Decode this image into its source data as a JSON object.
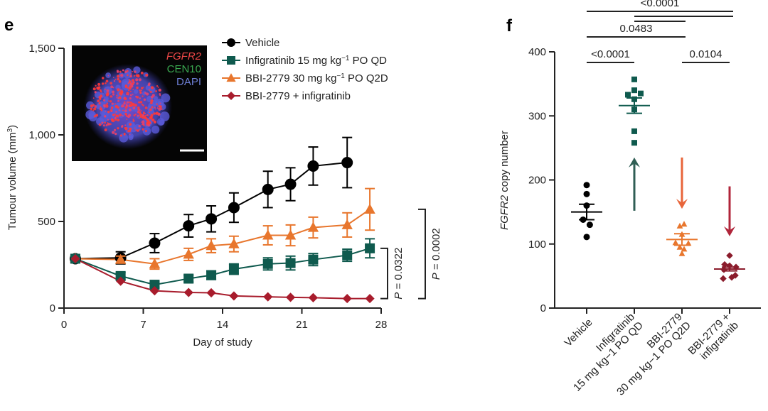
{
  "chart_data": [
    {
      "panel": "e",
      "type": "line",
      "xlabel": "Day of study",
      "ylabel": "Tumour volume (mm³)",
      "ylabel_main": "Tumour volume (mm",
      "ylabel_sup": "3",
      "ylabel_close": ")",
      "xlim": [
        0,
        28
      ],
      "ylim": [
        0,
        1500
      ],
      "xticks": [
        0,
        7,
        14,
        21,
        28
      ],
      "xtick_labels": [
        "0",
        "7",
        "14",
        "21",
        "28"
      ],
      "yticks": [
        0,
        500,
        1000,
        1500
      ],
      "ytick_labels": [
        "0",
        "500",
        "1,000",
        "1,500"
      ],
      "grid": false,
      "legend_position": "top-center",
      "series": [
        {
          "name": "Vehicle",
          "legend_label": "Vehicle",
          "color": "#000000",
          "marker": "circle",
          "x": [
            1,
            5,
            8,
            11,
            13,
            15,
            18,
            20,
            22,
            25
          ],
          "y": [
            285,
            290,
            375,
            475,
            515,
            580,
            685,
            715,
            820,
            840
          ],
          "err": [
            20,
            35,
            55,
            65,
            75,
            85,
            105,
            95,
            110,
            145
          ]
        },
        {
          "name": "Infigratinib 15 mg kg-1 PO QD",
          "legend_label": "Infigratinib 15 mg kg",
          "legend_sup": "−1",
          "legend_suffix": " PO QD",
          "color": "#0f5a4e",
          "marker": "square",
          "x": [
            1,
            5,
            8,
            11,
            13,
            15,
            18,
            20,
            22,
            25,
            27
          ],
          "y": [
            285,
            185,
            135,
            170,
            190,
            225,
            255,
            260,
            280,
            305,
            345
          ],
          "err": [
            15,
            20,
            15,
            20,
            25,
            30,
            35,
            40,
            35,
            35,
            55
          ]
        },
        {
          "name": "BBI-2779 30 mg kg-1 PO Q2D",
          "legend_label": "BBI-2779 30 mg kg",
          "legend_sup": "−1",
          "legend_suffix": " PO Q2D",
          "color": "#e8762d",
          "marker": "triangle",
          "x": [
            1,
            5,
            8,
            11,
            13,
            15,
            18,
            20,
            22,
            25,
            27
          ],
          "y": [
            285,
            280,
            255,
            310,
            360,
            370,
            420,
            420,
            465,
            480,
            570
          ],
          "err": [
            15,
            20,
            30,
            35,
            40,
            45,
            55,
            60,
            60,
            70,
            120
          ]
        },
        {
          "name": "BBI-2779 + infigratinib",
          "legend_label": "BBI-2779 + infigratinib",
          "color": "#a81c2c",
          "marker": "diamond",
          "x": [
            1,
            5,
            8,
            11,
            13,
            15,
            18,
            20,
            22,
            25,
            27
          ],
          "y": [
            285,
            155,
            100,
            90,
            88,
            70,
            65,
            62,
            60,
            55,
            55
          ],
          "err": [
            5,
            8,
            8,
            6,
            6,
            5,
            5,
            5,
            5,
            5,
            5
          ]
        }
      ],
      "annotations": [
        {
          "text": "P = 0.0322",
          "p_prefix": "P",
          "p_rest": " = 0.0322",
          "between": [
            "Infigratinib 15 mg kg-1 PO QD",
            "BBI-2779 + infigratinib"
          ],
          "y_range": [
            55,
            345
          ]
        },
        {
          "text": "P = 0.0002",
          "p_prefix": "P",
          "p_rest": " = 0.0002",
          "between": [
            "BBI-2779 30 mg kg-1 PO Q2D",
            "BBI-2779 + infigratinib"
          ],
          "y_range": [
            55,
            570
          ]
        }
      ],
      "inset": {
        "description": "FISH image of tumour nucleus",
        "labels": [
          {
            "text": "FGFR2",
            "color": "#f04848",
            "italic": true
          },
          {
            "text": "CEN10",
            "color": "#3aa850",
            "italic": false
          },
          {
            "text": "DAPI",
            "color": "#6e7fd6",
            "italic": false
          }
        ],
        "background": "#050505"
      }
    },
    {
      "panel": "f",
      "type": "scatter",
      "ylabel": "FGFR2 copy number",
      "ylabel_italic": "FGFR2",
      "ylabel_rest": " copy number",
      "ylim": [
        0,
        400
      ],
      "yticks": [
        0,
        100,
        200,
        300,
        400
      ],
      "ytick_labels": [
        "0",
        "100",
        "200",
        "300",
        "400"
      ],
      "grid": false,
      "categories": [
        {
          "lines": [
            "Vehicle"
          ]
        },
        {
          "lines": [
            "Infigratinib",
            "15 mg kg−1 PO QD"
          ]
        },
        {
          "lines": [
            "BBI-2779",
            "30 mg kg−1 PO Q2D"
          ]
        },
        {
          "lines": [
            "BBI-2779 +",
            "infigratinib"
          ]
        }
      ],
      "series": [
        {
          "name": "Vehicle",
          "color": "#000000",
          "marker": "circle",
          "points": [
            [
              0,
              192
            ],
            [
              0,
              178
            ],
            [
              0,
              160
            ],
            [
              -0.25,
              138
            ],
            [
              0.22,
              130
            ],
            [
              0,
              111
            ]
          ],
          "mean": 150,
          "sem": 12
        },
        {
          "name": "Infigratinib 15 mg kg-1 PO QD",
          "color": "#0f5a4e",
          "marker": "square",
          "points": [
            [
              0,
              357
            ],
            [
              0,
              340
            ],
            [
              -0.45,
              333
            ],
            [
              0.45,
              335
            ],
            [
              0,
              326
            ],
            [
              0,
              310
            ],
            [
              0,
              276
            ],
            [
              0,
              258
            ]
          ],
          "mean": 316,
          "sem": 12
        },
        {
          "name": "BBI-2779 30 mg kg-1 PO Q2D",
          "color": "#e8762d",
          "marker": "triangle",
          "points": [
            [
              -0.15,
              128
            ],
            [
              0.15,
              131
            ],
            [
              0,
              115
            ],
            [
              -0.45,
              102
            ],
            [
              0.45,
              101
            ],
            [
              -0.15,
              95
            ],
            [
              0.15,
              92
            ],
            [
              0,
              85
            ]
          ],
          "mean": 107,
          "sem": 9
        },
        {
          "name": "BBI-2779 + infigratinib",
          "color": "#8b1c2c",
          "marker": "diamond",
          "points": [
            [
              0,
              82
            ],
            [
              -0.35,
              68
            ],
            [
              0,
              66
            ],
            [
              0.45,
              64
            ],
            [
              -0.4,
              60
            ],
            [
              -0.45,
              46
            ],
            [
              0.15,
              48
            ],
            [
              0.4,
              51
            ]
          ],
          "mean": 61,
          "sem": 3
        }
      ],
      "arrows": [
        {
          "category": 1,
          "direction": "up",
          "from": 152,
          "to": 235,
          "color": "#2f5e54"
        },
        {
          "category": 2,
          "direction": "down",
          "from": 235,
          "to": 155,
          "color": "#e8653a"
        },
        {
          "category": 3,
          "direction": "down",
          "from": 190,
          "to": 112,
          "color": "#b0253a"
        }
      ],
      "significance": [
        {
          "from": 0,
          "to": 1,
          "label": "<0.0001",
          "level": 0
        },
        {
          "from": 2,
          "to": 3,
          "label": "0.0104",
          "level": 0
        },
        {
          "from": 0,
          "to": 2,
          "label": "0.0483",
          "level": 1
        },
        {
          "from": 1,
          "to": 2,
          "label": "",
          "level": 2
        },
        {
          "from": 1,
          "to": 3,
          "label": "",
          "level": 3
        },
        {
          "from": 0,
          "to": 3,
          "label": "<0.0001",
          "level": 4
        }
      ]
    }
  ],
  "panels": {
    "e_letter": "e",
    "f_letter": "f"
  }
}
